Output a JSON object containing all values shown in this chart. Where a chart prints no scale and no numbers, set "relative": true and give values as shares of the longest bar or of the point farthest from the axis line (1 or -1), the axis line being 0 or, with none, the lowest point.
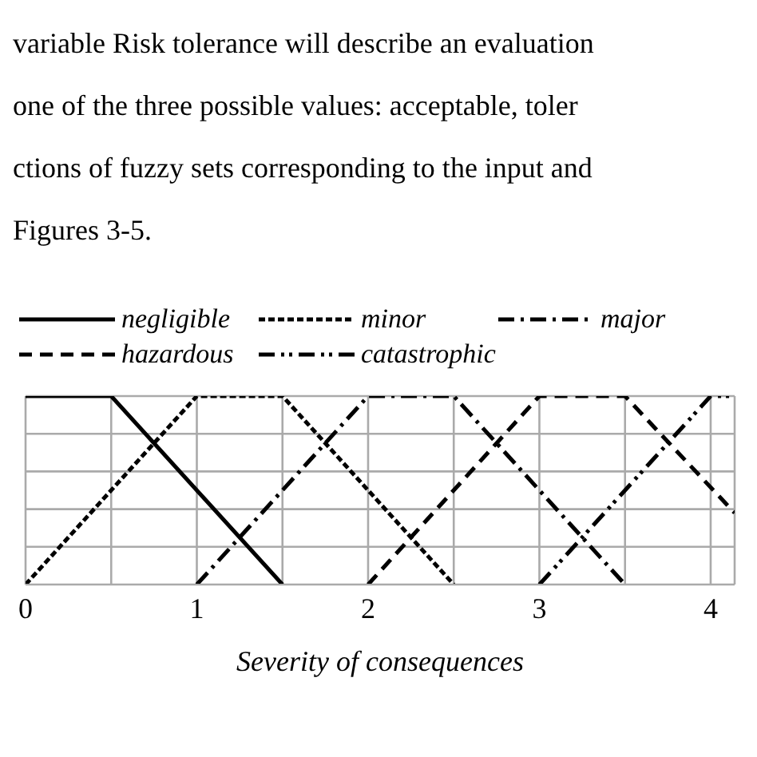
{
  "chart_data": {
    "type": "line",
    "relative": true,
    "xlabel": "Severity of consequences",
    "annotations": [
      "variable Risk tolerance will describe an evaluation",
      "one of the three possible values: acceptable, toler",
      "ctions of fuzzy sets corresponding to the input and",
      "Figures 3-5."
    ],
    "xlim": [
      0,
      4.14
    ],
    "xticks": [
      0,
      {
        "value": 0.5,
        "label": null
      },
      1,
      {
        "value": 1.5,
        "label": null
      },
      2,
      {
        "value": 2.5,
        "label": null
      },
      3,
      {
        "value": 3.5,
        "label": null
      },
      4
    ],
    "grid": true,
    "legend": "top",
    "marker": "none",
    "series": [
      {
        "name": "negligible",
        "color": "#000000",
        "line_style": "solid",
        "x": [
          0,
          0.5,
          1.5
        ],
        "values": [
          1,
          1,
          0
        ]
      },
      {
        "name": "minor",
        "color": "#000000",
        "line_style": "dotted",
        "x": [
          0,
          1,
          1.5,
          2.5
        ],
        "values": [
          0,
          1,
          1,
          0
        ]
      },
      {
        "name": "major",
        "color": "#000000",
        "line_style": "dashdot",
        "x": [
          1,
          2,
          2.5,
          3.5
        ],
        "values": [
          0,
          1,
          1,
          0
        ]
      },
      {
        "name": "hazardous",
        "color": "#000000",
        "line_style": "dashed",
        "x": [
          2,
          3,
          3.5,
          4.14
        ],
        "values": [
          0,
          1,
          1,
          0.38
        ]
      },
      {
        "name": "catastrophic",
        "color": "#000000",
        "line_style": "dashdotdot",
        "x": [
          3,
          4,
          4.14
        ],
        "values": [
          0,
          1,
          1
        ]
      }
    ]
  }
}
